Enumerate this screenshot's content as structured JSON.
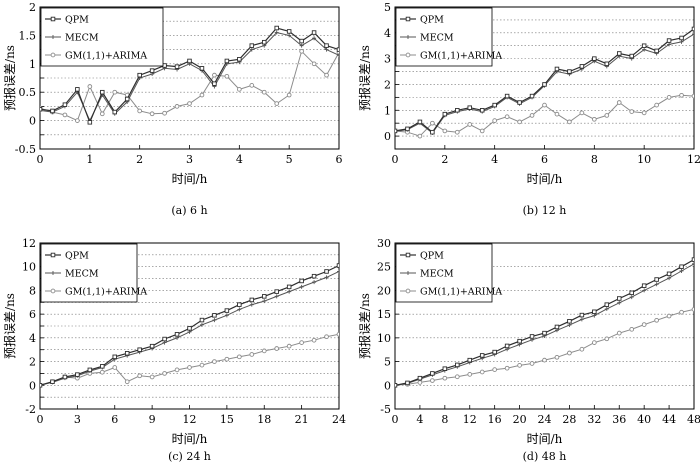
{
  "chart_data": [
    {
      "type": "line",
      "caption": "(a) 6 h",
      "xlabel": "时间/h",
      "ylabel": "预报误差/ns",
      "xlim": [
        0,
        6
      ],
      "ylim": [
        -0.5,
        2
      ],
      "xticks": [
        0,
        1,
        2,
        3,
        4,
        5,
        6
      ],
      "yticks": [
        -0.5,
        -0.25,
        0,
        0.25,
        0.5,
        0.75,
        1,
        1.25,
        1.5,
        1.75,
        2
      ],
      "ytick_labels": [
        "-0.5",
        "",
        "0",
        "",
        "0.5",
        "",
        "1",
        "",
        "1.5",
        "",
        "2"
      ],
      "grid": "horizontal dotted",
      "legend_position": "top-left",
      "series": [
        {
          "name": "QPM",
          "marker": "square",
          "x": [
            0,
            0.25,
            0.5,
            0.75,
            1.0,
            1.25,
            1.5,
            1.75,
            2.0,
            2.25,
            2.5,
            2.75,
            3.0,
            3.25,
            3.5,
            3.75,
            4.0,
            4.25,
            4.5,
            4.75,
            5.0,
            5.25,
            5.5,
            5.75,
            6.0
          ],
          "y": [
            0.2,
            0.17,
            0.28,
            0.55,
            -0.03,
            0.5,
            0.15,
            0.38,
            0.8,
            0.88,
            0.97,
            0.95,
            1.05,
            0.92,
            0.65,
            1.05,
            1.08,
            1.32,
            1.38,
            1.63,
            1.57,
            1.4,
            1.55,
            1.32,
            1.25
          ]
        },
        {
          "name": "MECM",
          "marker": "cross",
          "x": [
            0,
            0.25,
            0.5,
            0.75,
            1.0,
            1.25,
            1.5,
            1.75,
            2.0,
            2.25,
            2.5,
            2.75,
            3.0,
            3.25,
            3.5,
            3.75,
            4.0,
            4.25,
            4.5,
            4.75,
            5.0,
            5.25,
            5.5,
            5.75,
            6.0
          ],
          "y": [
            0.18,
            0.15,
            0.25,
            0.5,
            0.0,
            0.45,
            0.12,
            0.33,
            0.75,
            0.82,
            0.92,
            0.9,
            1.0,
            0.88,
            0.6,
            1.0,
            1.03,
            1.25,
            1.32,
            1.55,
            1.5,
            1.32,
            1.45,
            1.25,
            1.15
          ]
        },
        {
          "name": "GM(1,1)+ARIMA",
          "marker": "circle",
          "x": [
            0,
            0.25,
            0.5,
            0.75,
            1.0,
            1.25,
            1.5,
            1.75,
            2.0,
            2.25,
            2.5,
            2.75,
            3.0,
            3.25,
            3.5,
            3.75,
            4.0,
            4.25,
            4.5,
            4.75,
            5.0,
            5.25,
            5.5,
            5.75,
            6.0
          ],
          "y": [
            0.22,
            0.15,
            0.1,
            0.0,
            0.6,
            0.12,
            0.5,
            0.45,
            0.17,
            0.12,
            0.13,
            0.25,
            0.3,
            0.45,
            0.8,
            0.78,
            0.55,
            0.62,
            0.5,
            0.3,
            0.45,
            1.22,
            1.0,
            0.8,
            1.2
          ]
        }
      ]
    },
    {
      "type": "line",
      "caption": "(b) 12 h",
      "xlabel": "时间/h",
      "ylabel": "预报误差/ns",
      "xlim": [
        0,
        12
      ],
      "ylim": [
        -0.5,
        5
      ],
      "xticks": [
        0,
        2,
        4,
        6,
        8,
        10,
        12
      ],
      "yticks": [
        -0.5,
        0,
        0.5,
        1,
        1.5,
        2,
        2.5,
        3,
        3.5,
        4,
        4.5,
        5
      ],
      "ytick_labels": [
        "",
        "0",
        "",
        "1",
        "",
        "2",
        "",
        "3",
        "",
        "4",
        "",
        "5"
      ],
      "grid": "horizontal dotted",
      "legend_position": "top-left",
      "series": [
        {
          "name": "QPM",
          "marker": "square",
          "x": [
            0,
            0.5,
            1.0,
            1.5,
            2.0,
            2.5,
            3.0,
            3.5,
            4.0,
            4.5,
            5.0,
            5.5,
            6.0,
            6.5,
            7.0,
            7.5,
            8.0,
            8.5,
            9.0,
            9.5,
            10.0,
            10.5,
            11.0,
            11.5,
            12.0
          ],
          "y": [
            0.2,
            0.28,
            0.55,
            0.15,
            0.85,
            1.0,
            1.1,
            1.0,
            1.2,
            1.55,
            1.3,
            1.55,
            2.0,
            2.6,
            2.5,
            2.7,
            3.0,
            2.8,
            3.2,
            3.1,
            3.5,
            3.3,
            3.7,
            3.8,
            4.15
          ]
        },
        {
          "name": "MECM",
          "marker": "cross",
          "x": [
            0,
            0.5,
            1.0,
            1.5,
            2.0,
            2.5,
            3.0,
            3.5,
            4.0,
            4.5,
            5.0,
            5.5,
            6.0,
            6.5,
            7.0,
            7.5,
            8.0,
            8.5,
            9.0,
            9.5,
            10.0,
            10.5,
            11.0,
            11.5,
            12.0
          ],
          "y": [
            0.18,
            0.25,
            0.5,
            0.12,
            0.8,
            0.95,
            1.05,
            0.95,
            1.15,
            1.5,
            1.25,
            1.5,
            1.95,
            2.5,
            2.4,
            2.6,
            2.9,
            2.7,
            3.1,
            3.0,
            3.35,
            3.2,
            3.55,
            3.65,
            3.95
          ]
        },
        {
          "name": "GM(1,1)+ARIMA",
          "marker": "circle",
          "x": [
            0,
            0.5,
            1.0,
            1.5,
            2.0,
            2.5,
            3.0,
            3.5,
            4.0,
            4.5,
            5.0,
            5.5,
            6.0,
            6.5,
            7.0,
            7.5,
            8.0,
            8.5,
            9.0,
            9.5,
            10.0,
            10.5,
            11.0,
            11.5,
            12.0
          ],
          "y": [
            0.2,
            0.15,
            0.0,
            0.5,
            0.2,
            0.15,
            0.45,
            0.2,
            0.6,
            0.75,
            0.55,
            0.8,
            1.2,
            0.85,
            0.55,
            0.9,
            0.65,
            0.8,
            1.3,
            0.95,
            0.9,
            1.2,
            1.5,
            1.58,
            1.55
          ]
        }
      ]
    },
    {
      "type": "line",
      "caption": "(c) 24 h",
      "xlabel": "时间/h",
      "ylabel": "预报误差/ns",
      "xlim": [
        0,
        24
      ],
      "ylim": [
        -2,
        12
      ],
      "xticks": [
        0,
        3,
        6,
        9,
        12,
        15,
        18,
        21,
        24
      ],
      "yticks": [
        -2,
        -1,
        0,
        1,
        2,
        3,
        4,
        5,
        6,
        7,
        8,
        9,
        10,
        11,
        12
      ],
      "ytick_labels": [
        "-2",
        "",
        "0",
        "",
        "2",
        "",
        "4",
        "",
        "6",
        "",
        "8",
        "",
        "10",
        "",
        "12"
      ],
      "grid": "horizontal dotted",
      "legend_position": "top-left",
      "series": [
        {
          "name": "QPM",
          "marker": "square",
          "x": [
            0,
            1,
            2,
            3,
            4,
            5,
            6,
            7,
            8,
            9,
            10,
            11,
            12,
            13,
            14,
            15,
            16,
            17,
            18,
            19,
            20,
            21,
            22,
            23,
            24
          ],
          "y": [
            0.0,
            0.3,
            0.7,
            0.9,
            1.3,
            1.6,
            2.4,
            2.7,
            3.0,
            3.3,
            3.9,
            4.3,
            4.8,
            5.5,
            5.9,
            6.3,
            6.8,
            7.2,
            7.5,
            7.9,
            8.3,
            8.8,
            9.2,
            9.6,
            10.1
          ]
        },
        {
          "name": "MECM",
          "marker": "cross",
          "x": [
            0,
            1,
            2,
            3,
            4,
            5,
            6,
            7,
            8,
            9,
            10,
            11,
            12,
            13,
            14,
            15,
            16,
            17,
            18,
            19,
            20,
            21,
            22,
            23,
            24
          ],
          "y": [
            0.0,
            0.25,
            0.6,
            0.8,
            1.2,
            1.5,
            2.2,
            2.5,
            2.8,
            3.1,
            3.6,
            4.0,
            4.5,
            5.1,
            5.5,
            5.9,
            6.4,
            6.8,
            7.1,
            7.5,
            7.9,
            8.3,
            8.7,
            9.1,
            9.6
          ]
        },
        {
          "name": "GM(1,1)+ARIMA",
          "marker": "circle",
          "x": [
            0,
            1,
            2,
            3,
            4,
            5,
            6,
            7,
            8,
            9,
            10,
            11,
            12,
            13,
            14,
            15,
            16,
            17,
            18,
            19,
            20,
            21,
            22,
            23,
            24
          ],
          "y": [
            0.0,
            0.3,
            0.7,
            0.6,
            1.0,
            1.1,
            1.5,
            0.3,
            0.8,
            0.7,
            1.0,
            1.3,
            1.5,
            1.7,
            2.0,
            2.2,
            2.4,
            2.6,
            2.9,
            3.1,
            3.3,
            3.6,
            3.8,
            4.1,
            4.3
          ]
        }
      ]
    },
    {
      "type": "line",
      "caption": "(d) 48 h",
      "xlabel": "时间/h",
      "ylabel": "预报误差/ns",
      "xlim": [
        0,
        48
      ],
      "ylim": [
        -5,
        30
      ],
      "xticks": [
        0,
        4,
        8,
        12,
        16,
        20,
        24,
        28,
        32,
        36,
        40,
        44,
        48
      ],
      "yticks": [
        -5,
        0,
        5,
        10,
        15,
        20,
        25,
        30
      ],
      "ytick_labels": [
        "-5",
        "0",
        "5",
        "10",
        "15",
        "20",
        "25",
        "30"
      ],
      "grid": "horizontal dotted",
      "legend_position": "top-left",
      "series": [
        {
          "name": "QPM",
          "marker": "square",
          "x": [
            0,
            2,
            4,
            6,
            8,
            10,
            12,
            14,
            16,
            18,
            20,
            22,
            24,
            26,
            28,
            30,
            32,
            34,
            36,
            38,
            40,
            42,
            44,
            46,
            48
          ],
          "y": [
            0.0,
            0.5,
            1.5,
            2.5,
            3.5,
            4.3,
            5.3,
            6.3,
            7.0,
            8.3,
            9.3,
            10.3,
            11.0,
            12.3,
            13.5,
            14.8,
            15.5,
            17.0,
            18.3,
            19.5,
            21.0,
            22.3,
            23.5,
            25.0,
            26.5
          ]
        },
        {
          "name": "MECM",
          "marker": "cross",
          "x": [
            0,
            2,
            4,
            6,
            8,
            10,
            12,
            14,
            16,
            18,
            20,
            22,
            24,
            26,
            28,
            30,
            32,
            34,
            36,
            38,
            40,
            42,
            44,
            46,
            48
          ],
          "y": [
            0.0,
            0.4,
            1.3,
            2.2,
            3.1,
            3.9,
            4.8,
            5.7,
            6.5,
            7.6,
            8.6,
            9.6,
            10.4,
            11.6,
            12.7,
            13.9,
            14.7,
            16.1,
            17.4,
            18.6,
            20.0,
            21.3,
            22.6,
            24.1,
            25.6
          ]
        },
        {
          "name": "GM(1,1)+ARIMA",
          "marker": "circle",
          "x": [
            0,
            2,
            4,
            6,
            8,
            10,
            12,
            14,
            16,
            18,
            20,
            22,
            24,
            26,
            28,
            30,
            32,
            34,
            36,
            38,
            40,
            42,
            44,
            46,
            48
          ],
          "y": [
            0.0,
            0.2,
            0.6,
            1.0,
            1.5,
            1.8,
            2.3,
            2.8,
            3.3,
            3.6,
            4.2,
            4.6,
            5.3,
            5.9,
            6.8,
            7.6,
            9.0,
            9.8,
            11.0,
            11.8,
            12.8,
            13.7,
            14.6,
            15.4,
            16.0
          ]
        }
      ]
    }
  ]
}
